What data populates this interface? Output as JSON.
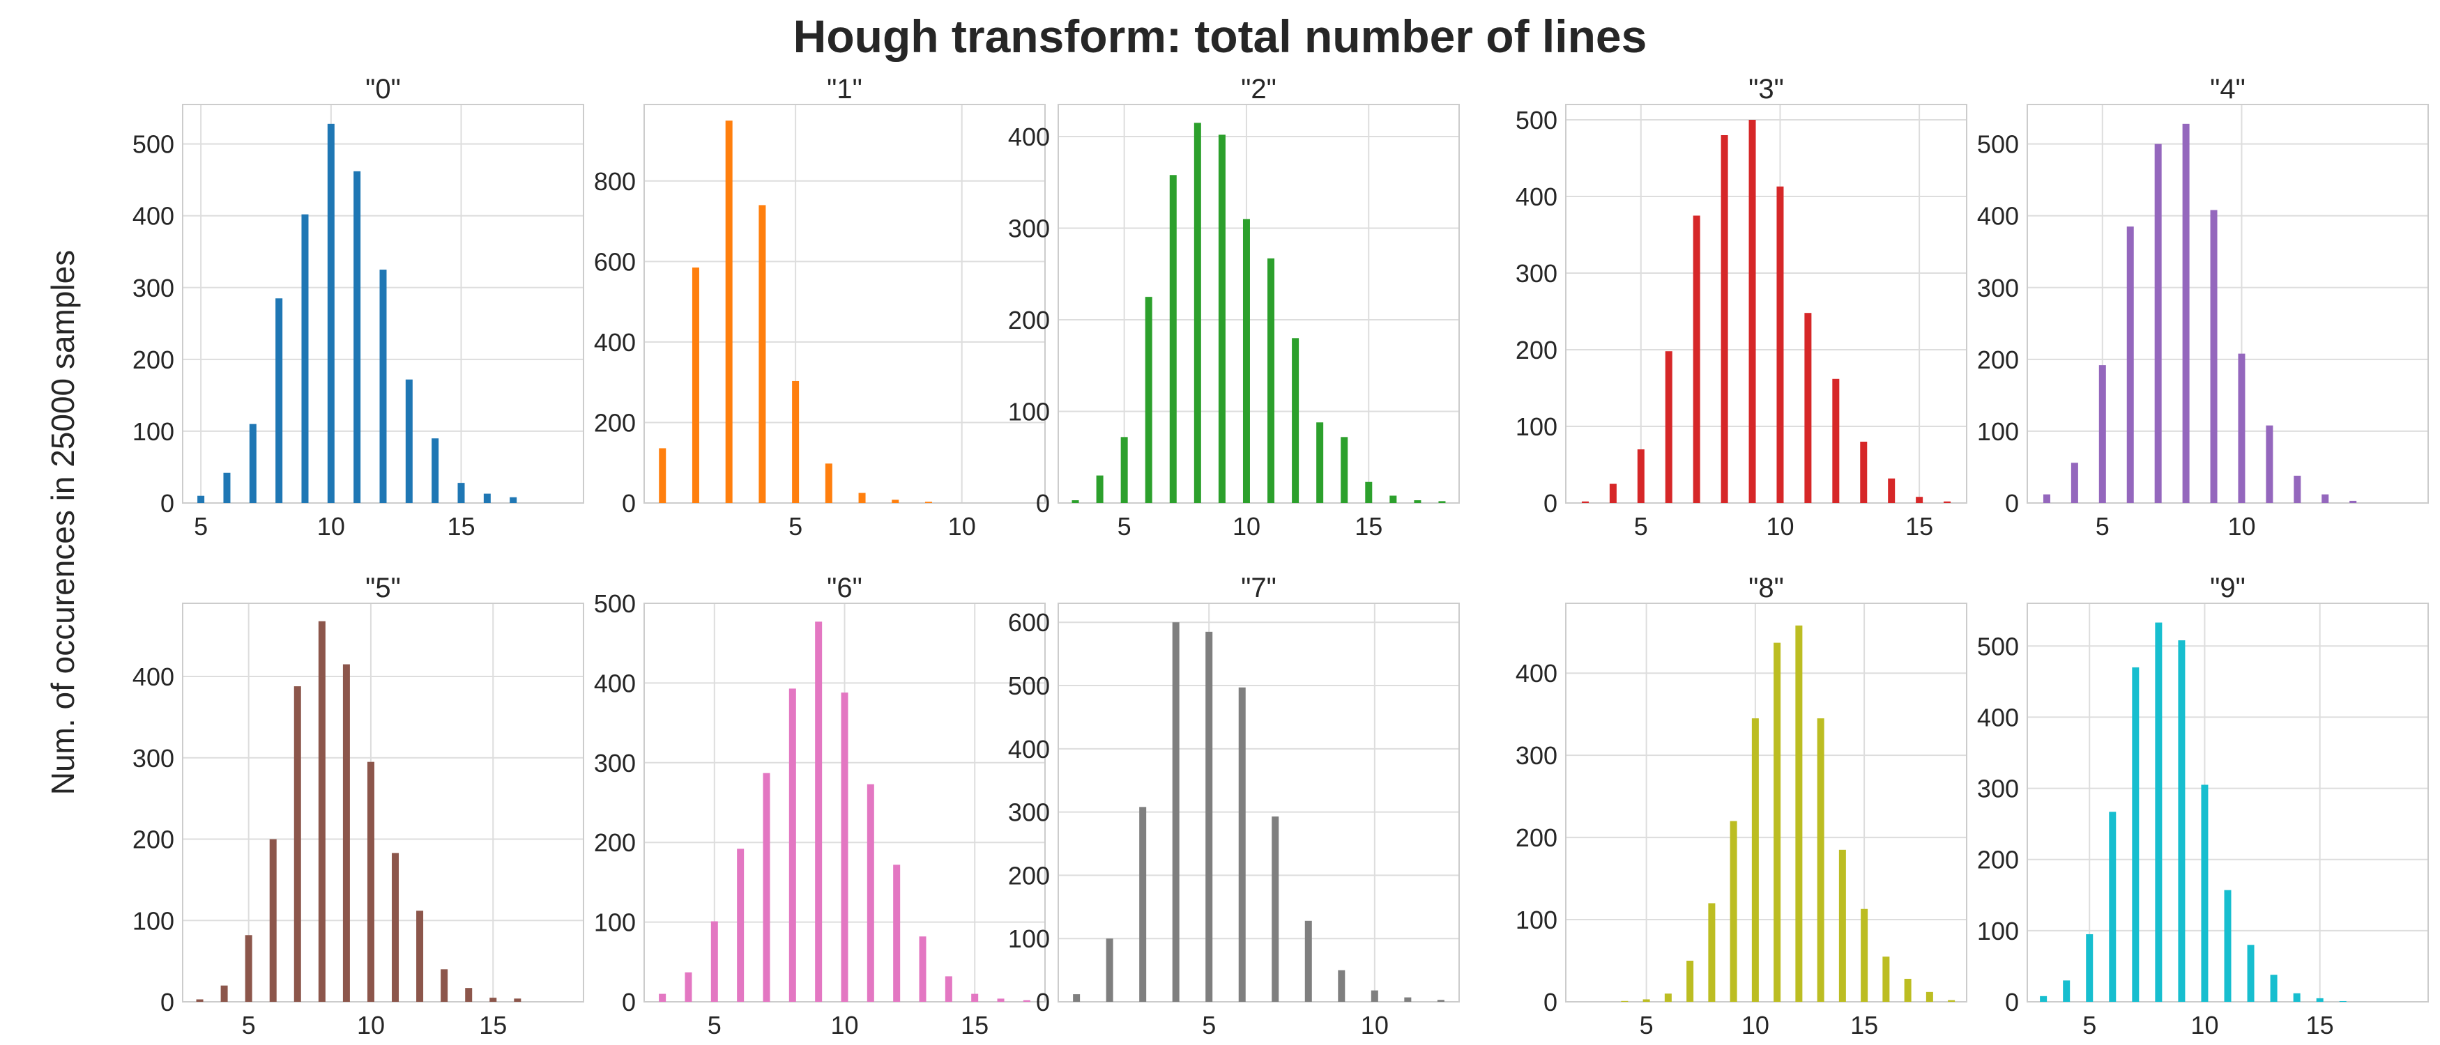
{
  "figure": {
    "title": "Hough transform: total number of lines",
    "ylabel": "Num. of occurences in 25000 samples"
  },
  "chart_data": [
    {
      "type": "bar",
      "title": "\"0\"",
      "color": "#1f77b4",
      "grid": true,
      "xlim": [
        4.3,
        19.7
      ],
      "ylim": [
        0,
        555
      ],
      "xticks": [
        5,
        10,
        15
      ],
      "yticks": [
        0,
        100,
        200,
        300,
        400,
        500
      ],
      "x": [
        5,
        6,
        7,
        8,
        9,
        10,
        11,
        12,
        13,
        14,
        15,
        16,
        17
      ],
      "values": [
        10,
        42,
        110,
        285,
        402,
        528,
        462,
        325,
        172,
        90,
        28,
        13,
        8
      ]
    },
    {
      "type": "bar",
      "title": "\"1\"",
      "color": "#ff7f0e",
      "grid": true,
      "xlim": [
        0.45,
        12.5
      ],
      "ylim": [
        0,
        990
      ],
      "xticks": [
        5,
        10
      ],
      "yticks": [
        0,
        200,
        400,
        600,
        800
      ],
      "x": [
        1,
        2,
        3,
        4,
        5,
        6,
        7,
        8,
        9
      ],
      "values": [
        136,
        585,
        950,
        740,
        303,
        98,
        25,
        8,
        3
      ]
    },
    {
      "type": "bar",
      "title": "\"2\"",
      "color": "#2ca02c",
      "grid": true,
      "xlim": [
        2.3,
        18.7
      ],
      "ylim": [
        0,
        435
      ],
      "xticks": [
        5,
        10,
        15
      ],
      "yticks": [
        0,
        100,
        200,
        300,
        400
      ],
      "x": [
        3,
        4,
        5,
        6,
        7,
        8,
        9,
        10,
        11,
        12,
        13,
        14,
        15,
        16,
        17,
        18
      ],
      "values": [
        3,
        30,
        72,
        225,
        358,
        415,
        402,
        310,
        267,
        180,
        88,
        72,
        23,
        8,
        3,
        2
      ]
    },
    {
      "type": "bar",
      "title": "\"3\"",
      "color": "#d62728",
      "grid": true,
      "xlim": [
        2.3,
        16.7
      ],
      "ylim": [
        0,
        520
      ],
      "xticks": [
        5,
        10,
        15
      ],
      "yticks": [
        0,
        100,
        200,
        300,
        400,
        500
      ],
      "x": [
        3,
        4,
        5,
        6,
        7,
        8,
        9,
        10,
        11,
        12,
        13,
        14,
        15,
        16
      ],
      "values": [
        2,
        25,
        70,
        198,
        375,
        480,
        500,
        413,
        248,
        162,
        80,
        32,
        8,
        2
      ]
    },
    {
      "type": "bar",
      "title": "\"4\"",
      "color": "#9467bd",
      "grid": true,
      "xlim": [
        2.3,
        16.7
      ],
      "ylim": [
        0,
        555
      ],
      "xticks": [
        5,
        10
      ],
      "yticks": [
        0,
        100,
        200,
        300,
        400,
        500
      ],
      "x": [
        3,
        4,
        5,
        6,
        7,
        8,
        9,
        10,
        11,
        12,
        13,
        14
      ],
      "values": [
        12,
        56,
        192,
        385,
        500,
        528,
        408,
        208,
        108,
        38,
        12,
        3
      ]
    },
    {
      "type": "bar",
      "title": "\"5\"",
      "color": "#8c564b",
      "grid": true,
      "xlim": [
        2.3,
        18.7
      ],
      "ylim": [
        0,
        490
      ],
      "xticks": [
        5,
        10,
        15
      ],
      "yticks": [
        0,
        100,
        200,
        300,
        400
      ],
      "x": [
        3,
        4,
        5,
        6,
        7,
        8,
        9,
        10,
        11,
        12,
        13,
        14,
        15,
        16
      ],
      "values": [
        3,
        20,
        82,
        200,
        388,
        468,
        415,
        295,
        183,
        112,
        40,
        17,
        5,
        4
      ]
    },
    {
      "type": "bar",
      "title": "\"6\"",
      "color": "#e377c2",
      "grid": true,
      "xlim": [
        2.3,
        17.7
      ],
      "ylim": [
        0,
        500
      ],
      "xticks": [
        5,
        10,
        15
      ],
      "yticks": [
        0,
        100,
        200,
        300,
        400,
        500
      ],
      "x": [
        3,
        4,
        5,
        6,
        7,
        8,
        9,
        10,
        11,
        12,
        13,
        14,
        15,
        16,
        17
      ],
      "values": [
        10,
        37,
        101,
        192,
        287,
        393,
        477,
        388,
        273,
        172,
        82,
        32,
        10,
        4,
        2
      ]
    },
    {
      "type": "bar",
      "title": "\"7\"",
      "color": "#7f7f7f",
      "grid": true,
      "xlim": [
        0.45,
        12.55
      ],
      "ylim": [
        0,
        630
      ],
      "xticks": [
        5,
        10
      ],
      "yticks": [
        0,
        100,
        200,
        300,
        400,
        500,
        600
      ],
      "x": [
        1,
        2,
        3,
        4,
        5,
        6,
        7,
        8,
        9,
        10,
        11,
        12
      ],
      "values": [
        12,
        100,
        308,
        600,
        585,
        497,
        293,
        128,
        50,
        18,
        7,
        3
      ]
    },
    {
      "type": "bar",
      "title": "\"8\"",
      "color": "#bcbd22",
      "grid": true,
      "xlim": [
        1.3,
        19.7
      ],
      "ylim": [
        0,
        485
      ],
      "xticks": [
        5,
        10,
        15
      ],
      "yticks": [
        0,
        100,
        200,
        300,
        400
      ],
      "x": [
        4,
        5,
        6,
        7,
        8,
        9,
        10,
        11,
        12,
        13,
        14,
        15,
        16,
        17,
        18,
        19
      ],
      "values": [
        1,
        3,
        10,
        50,
        120,
        220,
        345,
        437,
        458,
        345,
        185,
        113,
        55,
        28,
        12,
        2
      ]
    },
    {
      "type": "bar",
      "title": "\"9\"",
      "color": "#17becf",
      "grid": true,
      "xlim": [
        2.3,
        19.7
      ],
      "ylim": [
        0,
        560
      ],
      "xticks": [
        5,
        10,
        15
      ],
      "yticks": [
        0,
        100,
        200,
        300,
        400,
        500
      ],
      "x": [
        3,
        4,
        5,
        6,
        7,
        8,
        9,
        10,
        11,
        12,
        13,
        14,
        15,
        16
      ],
      "values": [
        8,
        30,
        95,
        267,
        470,
        533,
        508,
        305,
        157,
        80,
        38,
        12,
        5,
        1
      ]
    }
  ]
}
